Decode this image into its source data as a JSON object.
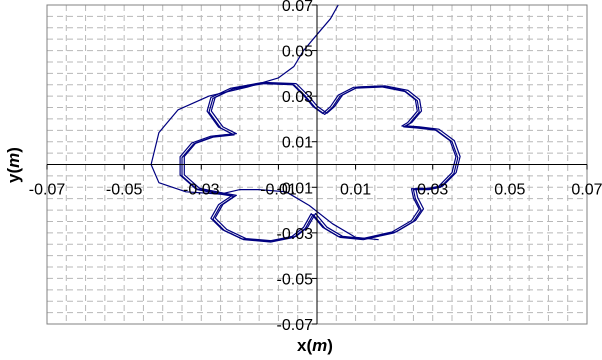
{
  "chart_data": {
    "type": "line",
    "title": "",
    "xlabel": {
      "prefix": "x(",
      "unit": "m",
      "suffix": ")"
    },
    "ylabel": {
      "prefix": "y(",
      "unit": "m",
      "suffix": ")"
    },
    "xlim": [
      -0.07,
      0.07
    ],
    "ylim": [
      -0.07,
      0.07
    ],
    "x_ticks": [
      "-0.07",
      "-0.05",
      "-0.03",
      "-0.01",
      "0.01",
      "0.03",
      "0.05",
      "0.07"
    ],
    "y_ticks": [
      "0.07",
      "0.05",
      "0.03",
      "0.01",
      "-0.01",
      "-0.03",
      "-0.05",
      "-0.07"
    ],
    "grid": {
      "major_step": 0.01,
      "minor_step": 0.005,
      "style": "dashed"
    },
    "legend": "none",
    "line_color": "#000080",
    "series": [
      {
        "values": [
          [
            0.0055,
            0.07
          ],
          [
            0.0035,
            0.064
          ],
          [
            0.0005,
            0.058
          ],
          [
            -0.0035,
            0.05
          ],
          [
            -0.006,
            0.043
          ],
          [
            -0.01,
            0.038
          ],
          [
            -0.018,
            0.034
          ],
          [
            -0.028,
            0.03
          ],
          [
            -0.036,
            0.024
          ],
          [
            -0.041,
            0.014
          ],
          [
            -0.043,
            0.0
          ],
          [
            -0.041,
            -0.008
          ],
          [
            -0.034,
            -0.012
          ],
          [
            -0.025,
            -0.013
          ],
          [
            -0.02,
            -0.011
          ],
          [
            -0.015,
            -0.011
          ],
          [
            -0.008,
            -0.012
          ],
          [
            -0.002,
            -0.018
          ],
          [
            0.004,
            -0.026
          ],
          [
            0.01,
            -0.032
          ],
          [
            0.016,
            -0.033
          ]
        ]
      },
      {
        "values": [
          [
            -0.006,
            0.035
          ],
          [
            -0.003,
            0.03
          ],
          [
            -0.0005,
            0.025
          ],
          [
            0.002,
            0.022
          ],
          [
            0.004,
            0.025
          ],
          [
            0.006,
            0.03
          ],
          [
            0.01,
            0.0335
          ],
          [
            0.017,
            0.034
          ],
          [
            0.023,
            0.032
          ],
          [
            0.026,
            0.028
          ],
          [
            0.0265,
            0.023
          ],
          [
            0.024,
            0.018
          ],
          [
            0.0225,
            0.0165
          ],
          [
            0.026,
            0.016
          ],
          [
            0.031,
            0.015
          ],
          [
            0.035,
            0.01
          ],
          [
            0.0365,
            0.003
          ],
          [
            0.0355,
            -0.004
          ],
          [
            0.032,
            -0.01
          ],
          [
            0.029,
            -0.011
          ],
          [
            0.025,
            -0.011
          ],
          [
            0.0255,
            -0.015
          ],
          [
            0.027,
            -0.02
          ],
          [
            0.025,
            -0.025
          ],
          [
            0.02,
            -0.03
          ],
          [
            0.012,
            -0.033
          ],
          [
            0.006,
            -0.032
          ],
          [
            0.002,
            -0.028
          ],
          [
            -0.001,
            -0.022
          ],
          [
            -0.003,
            -0.028
          ],
          [
            -0.006,
            -0.032
          ],
          [
            -0.012,
            -0.034
          ],
          [
            -0.019,
            -0.033
          ],
          [
            -0.024,
            -0.029
          ],
          [
            -0.027,
            -0.024
          ],
          [
            -0.025,
            -0.018
          ],
          [
            -0.0215,
            -0.014
          ],
          [
            -0.025,
            -0.013
          ],
          [
            -0.031,
            -0.011
          ],
          [
            -0.035,
            -0.005
          ],
          [
            -0.035,
            0.003
          ],
          [
            -0.032,
            0.009
          ],
          [
            -0.027,
            0.012
          ],
          [
            -0.0215,
            0.013
          ],
          [
            -0.025,
            0.016
          ],
          [
            -0.028,
            0.023
          ],
          [
            -0.027,
            0.029
          ],
          [
            -0.022,
            0.033
          ],
          [
            -0.014,
            0.0355
          ],
          [
            -0.006,
            0.035
          ]
        ]
      }
    ]
  }
}
